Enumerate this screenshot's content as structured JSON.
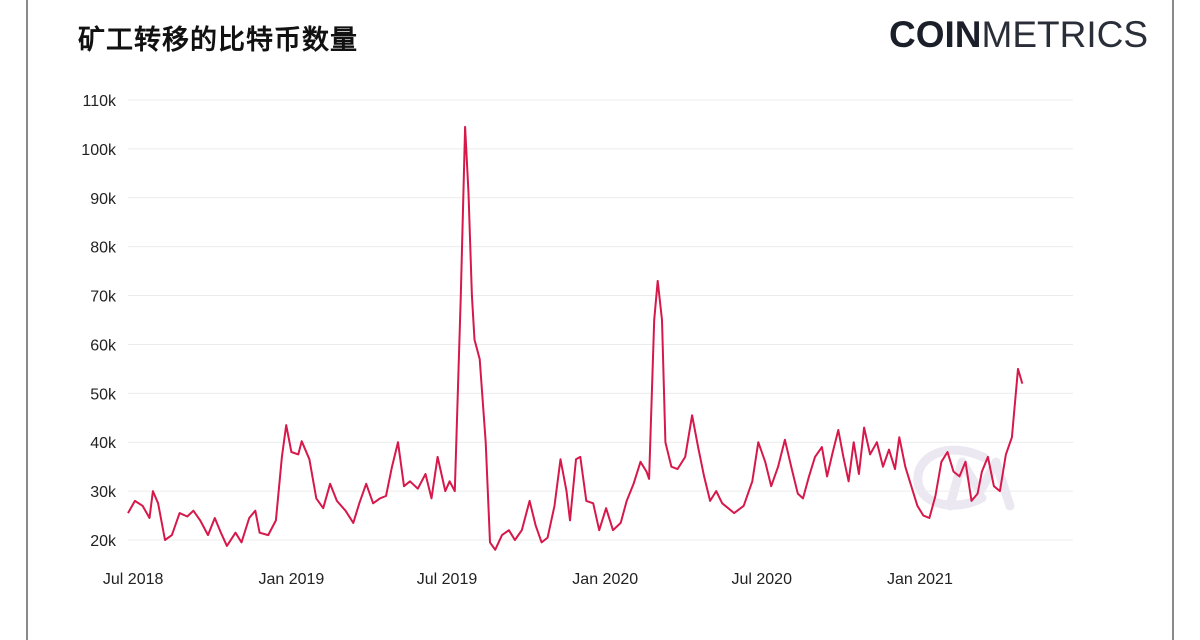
{
  "title": "矿工转移的比特币数量",
  "logo": {
    "bold": "COIN",
    "light": "METRICS"
  },
  "colors": {
    "series": "#d6184a",
    "grid": "#ececec",
    "watermark": "#ece8f1"
  },
  "chart_data": {
    "type": "line",
    "title": "矿工转移的比特币数量",
    "xlabel": "",
    "ylabel": "",
    "ylim": [
      20000,
      110000
    ],
    "yticks": [
      20000,
      30000,
      40000,
      50000,
      60000,
      70000,
      80000,
      90000,
      100000,
      110000
    ],
    "ytick_labels": [
      "20k",
      "30k",
      "40k",
      "50k",
      "60k",
      "70k",
      "80k",
      "90k",
      "100k",
      "110k"
    ],
    "xticks": [
      "2018-07-01",
      "2019-01-01",
      "2019-07-01",
      "2020-01-01",
      "2020-07-01",
      "2021-01-01"
    ],
    "xtick_labels": [
      "Jul 2018",
      "Jan 2019",
      "Jul 2019",
      "Jan 2020",
      "Jul 2020",
      "Jan 2021"
    ],
    "xlim": [
      "2018-06-25",
      "2021-06-28"
    ],
    "grid": true,
    "series": [
      {
        "color": "#d6184a",
        "points": [
          [
            "2018-06-25",
            25500
          ],
          [
            "2018-07-03",
            28000
          ],
          [
            "2018-07-12",
            27000
          ],
          [
            "2018-07-20",
            24500
          ],
          [
            "2018-07-24",
            30000
          ],
          [
            "2018-07-30",
            27500
          ],
          [
            "2018-08-07",
            20000
          ],
          [
            "2018-08-15",
            21000
          ],
          [
            "2018-08-24",
            25500
          ],
          [
            "2018-09-02",
            24800
          ],
          [
            "2018-09-09",
            26000
          ],
          [
            "2018-09-17",
            24000
          ],
          [
            "2018-09-26",
            21000
          ],
          [
            "2018-10-04",
            24500
          ],
          [
            "2018-10-11",
            21500
          ],
          [
            "2018-10-18",
            18800
          ],
          [
            "2018-10-28",
            21500
          ],
          [
            "2018-11-04",
            19500
          ],
          [
            "2018-11-13",
            24500
          ],
          [
            "2018-11-20",
            26000
          ],
          [
            "2018-11-25",
            21500
          ],
          [
            "2018-12-05",
            21000
          ],
          [
            "2018-12-14",
            24000
          ],
          [
            "2018-12-21",
            37000
          ],
          [
            "2018-12-26",
            43500
          ],
          [
            "2019-01-01",
            38000
          ],
          [
            "2019-01-09",
            37500
          ],
          [
            "2019-01-13",
            40200
          ],
          [
            "2019-01-22",
            36500
          ],
          [
            "2019-01-30",
            28500
          ],
          [
            "2019-02-07",
            26500
          ],
          [
            "2019-02-15",
            31500
          ],
          [
            "2019-02-23",
            28000
          ],
          [
            "2019-03-05",
            26000
          ],
          [
            "2019-03-14",
            23500
          ],
          [
            "2019-03-21",
            27500
          ],
          [
            "2019-03-29",
            31500
          ],
          [
            "2019-04-06",
            27500
          ],
          [
            "2019-04-14",
            28500
          ],
          [
            "2019-04-21",
            29000
          ],
          [
            "2019-04-28",
            35000
          ],
          [
            "2019-05-05",
            40000
          ],
          [
            "2019-05-12",
            31000
          ],
          [
            "2019-05-19",
            32000
          ],
          [
            "2019-05-28",
            30500
          ],
          [
            "2019-06-06",
            33500
          ],
          [
            "2019-06-13",
            28500
          ],
          [
            "2019-06-20",
            37000
          ],
          [
            "2019-06-29",
            30000
          ],
          [
            "2019-07-04",
            32000
          ],
          [
            "2019-07-10",
            30000
          ],
          [
            "2019-07-17",
            70000
          ],
          [
            "2019-07-22",
            104500
          ],
          [
            "2019-07-26",
            91000
          ],
          [
            "2019-07-30",
            70000
          ],
          [
            "2019-08-02",
            61000
          ],
          [
            "2019-08-08",
            57000
          ],
          [
            "2019-08-15",
            40000
          ],
          [
            "2019-08-20",
            19500
          ],
          [
            "2019-08-26",
            18000
          ],
          [
            "2019-09-03",
            21000
          ],
          [
            "2019-09-11",
            22000
          ],
          [
            "2019-09-18",
            20000
          ],
          [
            "2019-09-26",
            22000
          ],
          [
            "2019-10-05",
            28000
          ],
          [
            "2019-10-12",
            23000
          ],
          [
            "2019-10-19",
            19500
          ],
          [
            "2019-10-26",
            20500
          ],
          [
            "2019-11-03",
            27000
          ],
          [
            "2019-11-10",
            36500
          ],
          [
            "2019-11-17",
            30000
          ],
          [
            "2019-11-21",
            24000
          ],
          [
            "2019-11-28",
            36500
          ],
          [
            "2019-12-03",
            37000
          ],
          [
            "2019-12-10",
            28000
          ],
          [
            "2019-12-18",
            27500
          ],
          [
            "2019-12-25",
            22000
          ],
          [
            "2020-01-02",
            26500
          ],
          [
            "2020-01-10",
            22000
          ],
          [
            "2020-01-19",
            23500
          ],
          [
            "2020-01-26",
            28000
          ],
          [
            "2020-02-03",
            31500
          ],
          [
            "2020-02-11",
            36000
          ],
          [
            "2020-02-18",
            34000
          ],
          [
            "2020-02-21",
            32500
          ],
          [
            "2020-02-27",
            65000
          ],
          [
            "2020-03-02",
            73000
          ],
          [
            "2020-03-07",
            65000
          ],
          [
            "2020-03-11",
            40000
          ],
          [
            "2020-03-18",
            35000
          ],
          [
            "2020-03-25",
            34500
          ],
          [
            "2020-04-03",
            37000
          ],
          [
            "2020-04-11",
            45500
          ],
          [
            "2020-04-18",
            39000
          ],
          [
            "2020-04-25",
            33000
          ],
          [
            "2020-05-02",
            28000
          ],
          [
            "2020-05-09",
            30000
          ],
          [
            "2020-05-16",
            27500
          ],
          [
            "2020-05-23",
            26500
          ],
          [
            "2020-05-30",
            25500
          ],
          [
            "2020-06-10",
            27000
          ],
          [
            "2020-06-20",
            32000
          ],
          [
            "2020-06-27",
            40000
          ],
          [
            "2020-07-05",
            36000
          ],
          [
            "2020-07-12",
            31000
          ],
          [
            "2020-07-20",
            35000
          ],
          [
            "2020-07-28",
            40500
          ],
          [
            "2020-08-05",
            34500
          ],
          [
            "2020-08-12",
            29500
          ],
          [
            "2020-08-18",
            28500
          ],
          [
            "2020-08-25",
            33000
          ],
          [
            "2020-09-01",
            37000
          ],
          [
            "2020-09-09",
            39000
          ],
          [
            "2020-09-15",
            33000
          ],
          [
            "2020-09-21",
            37500
          ],
          [
            "2020-09-28",
            42500
          ],
          [
            "2020-10-04",
            37000
          ],
          [
            "2020-10-10",
            32000
          ],
          [
            "2020-10-16",
            40000
          ],
          [
            "2020-10-22",
            33500
          ],
          [
            "2020-10-28",
            43000
          ],
          [
            "2020-11-04",
            37500
          ],
          [
            "2020-11-12",
            40000
          ],
          [
            "2020-11-19",
            35000
          ],
          [
            "2020-11-26",
            38500
          ],
          [
            "2020-12-03",
            34500
          ],
          [
            "2020-12-08",
            41000
          ],
          [
            "2020-12-15",
            35000
          ],
          [
            "2020-12-22",
            31000
          ],
          [
            "2020-12-29",
            27000
          ],
          [
            "2021-01-05",
            25000
          ],
          [
            "2021-01-12",
            24500
          ],
          [
            "2021-01-19",
            29000
          ],
          [
            "2021-01-26",
            36000
          ],
          [
            "2021-02-02",
            38000
          ],
          [
            "2021-02-09",
            34000
          ],
          [
            "2021-02-16",
            33000
          ],
          [
            "2021-02-23",
            36000
          ],
          [
            "2021-03-02",
            28000
          ],
          [
            "2021-03-09",
            29500
          ],
          [
            "2021-03-14",
            34000
          ],
          [
            "2021-03-21",
            37000
          ],
          [
            "2021-03-28",
            31000
          ],
          [
            "2021-04-04",
            30000
          ],
          [
            "2021-04-11",
            37500
          ],
          [
            "2021-04-18",
            41000
          ],
          [
            "2021-04-25",
            55000
          ],
          [
            "2021-04-30",
            52000
          ]
        ]
      }
    ]
  }
}
